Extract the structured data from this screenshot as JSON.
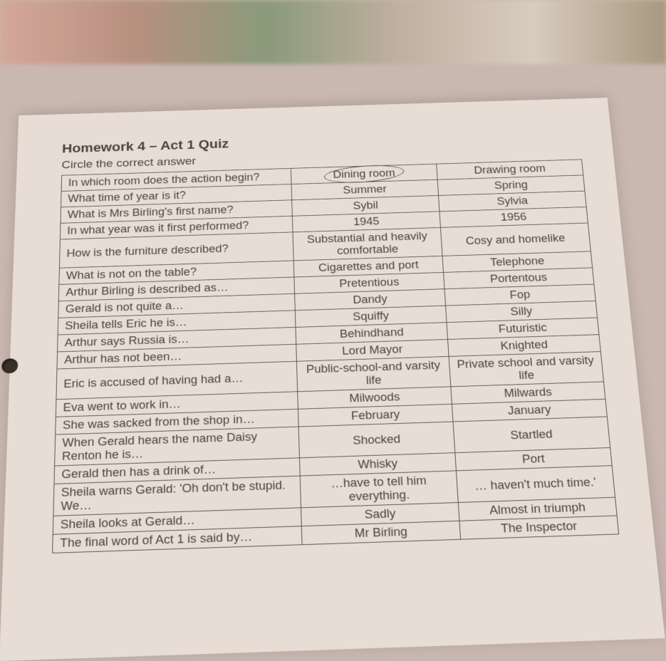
{
  "title": "Homework 4 – Act 1 Quiz",
  "instruction": "Circle the correct answer",
  "table": {
    "border_color": "#5a5048",
    "text_color": "#4a4440",
    "paper_color": "#e8ddd4",
    "font_size": 18,
    "rows": [
      {
        "question": "In which room does the action begin?",
        "option_a": "Dining room",
        "option_b": "Drawing room",
        "circled": "a"
      },
      {
        "question": "What time of year is it?",
        "option_a": "Summer",
        "option_b": "Spring",
        "circled": null
      },
      {
        "question": "What is Mrs Birling's first name?",
        "option_a": "Sybil",
        "option_b": "Sylvia",
        "circled": null
      },
      {
        "question": "In what year was it first performed?",
        "option_a": "1945",
        "option_b": "1956",
        "circled": null
      },
      {
        "question": "How is the furniture described?",
        "option_a": "Substantial and heavily comfortable",
        "option_b": "Cosy and homelike",
        "circled": null
      },
      {
        "question": "What is not on the table?",
        "option_a": "Cigarettes and port",
        "option_b": "Telephone",
        "circled": null
      },
      {
        "question": "Arthur Birling is described as…",
        "option_a": "Pretentious",
        "option_b": "Portentous",
        "circled": null
      },
      {
        "question": "Gerald is not quite a…",
        "option_a": "Dandy",
        "option_b": "Fop",
        "circled": null
      },
      {
        "question": "Sheila tells Eric he is…",
        "option_a": "Squiffy",
        "option_b": "Silly",
        "circled": null
      },
      {
        "question": "Arthur says Russia is…",
        "option_a": "Behindhand",
        "option_b": "Futuristic",
        "circled": null
      },
      {
        "question": "Arthur has not been…",
        "option_a": "Lord Mayor",
        "option_b": "Knighted",
        "circled": null
      },
      {
        "question": "Eric is accused of having had a…",
        "option_a": "Public-school-and varsity life",
        "option_b": "Private school and varsity life",
        "circled": null
      },
      {
        "question": "Eva went to work in…",
        "option_a": "Milwoods",
        "option_b": "Milwards",
        "circled": null
      },
      {
        "question": "She was sacked from the shop in…",
        "option_a": "February",
        "option_b": "January",
        "circled": null
      },
      {
        "question": "When Gerald hears the name Daisy Renton he is…",
        "option_a": "Shocked",
        "option_b": "Startled",
        "circled": null
      },
      {
        "question": "Gerald then has a drink of…",
        "option_a": "Whisky",
        "option_b": "Port",
        "circled": null
      },
      {
        "question": "Sheila warns Gerald: 'Oh don't be stupid. We…",
        "option_a": "…have to tell him everything.",
        "option_b": "… haven't much time.'",
        "circled": null
      },
      {
        "question": "Sheila looks at Gerald…",
        "option_a": "Sadly",
        "option_b": "Almost in triumph",
        "circled": null
      },
      {
        "question": "The final word of Act 1 is said by…",
        "option_a": "Mr Birling",
        "option_b": "The Inspector",
        "circled": null
      }
    ]
  }
}
